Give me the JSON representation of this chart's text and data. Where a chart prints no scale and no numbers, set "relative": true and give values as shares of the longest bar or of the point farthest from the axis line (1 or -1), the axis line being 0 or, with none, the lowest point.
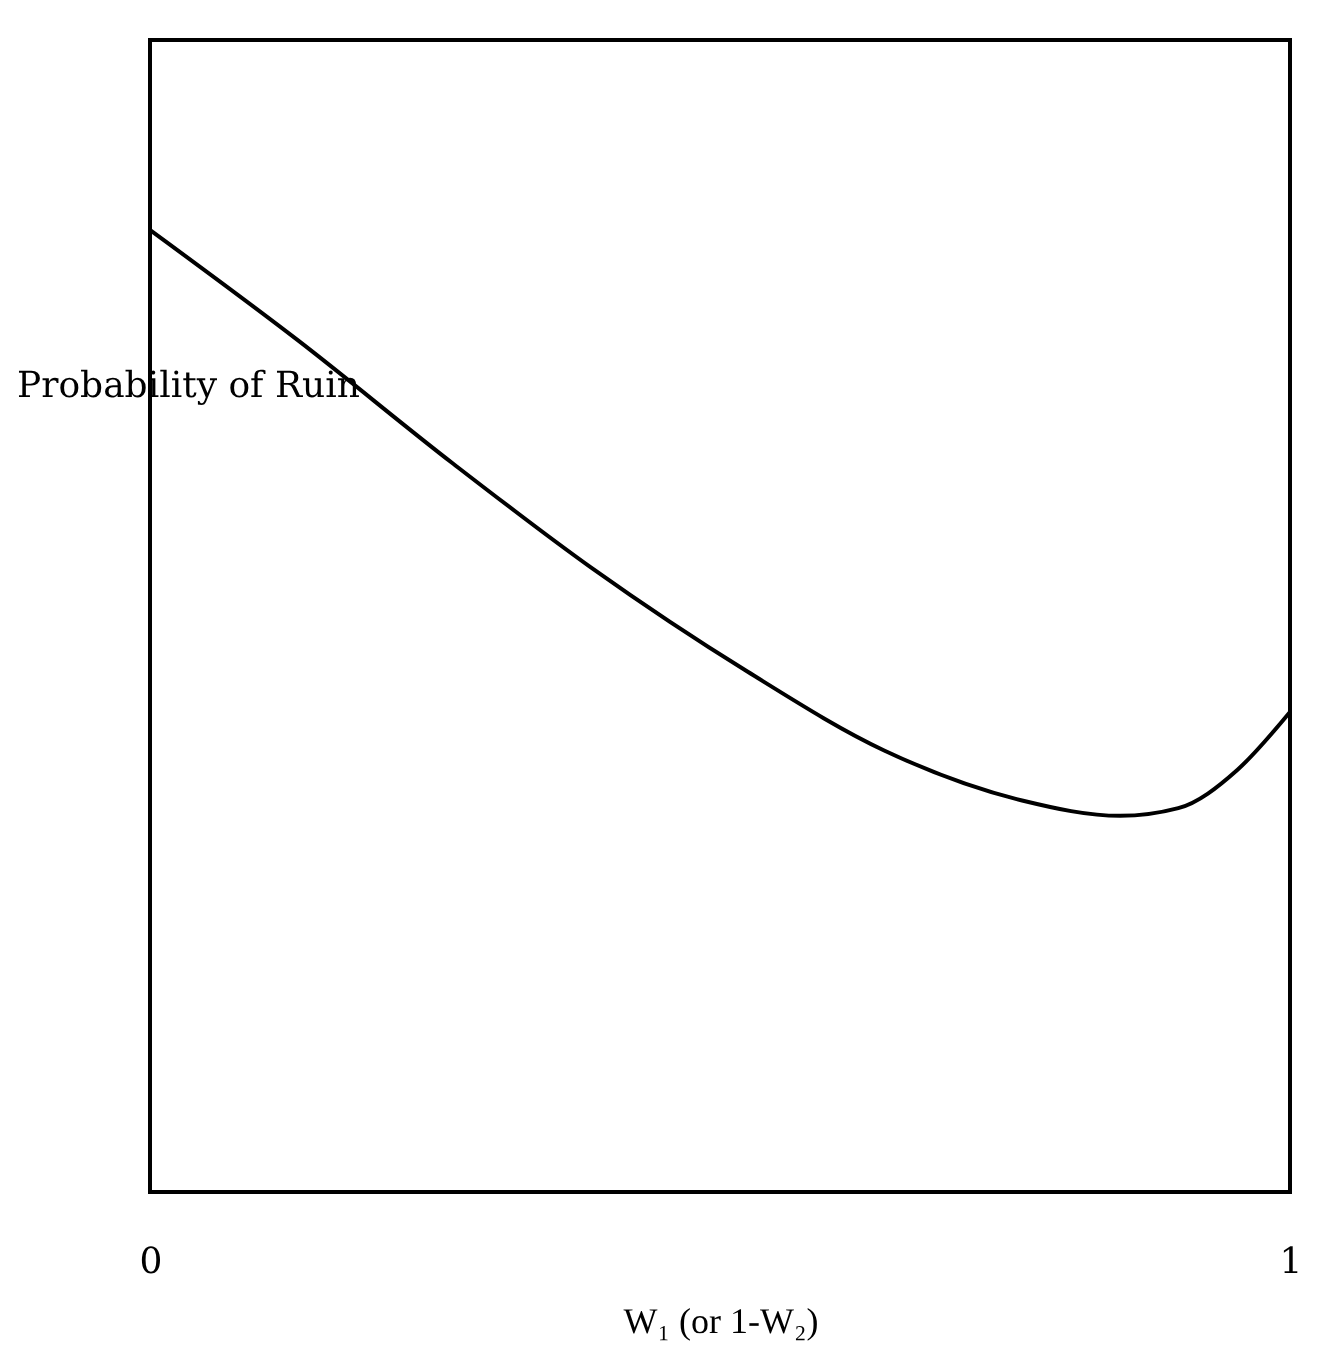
{
  "chart_data": {
    "type": "line",
    "relative": true,
    "xlabel": "W₁ (or 1-W₂)",
    "ylabel": "Probability of Ruin",
    "x": [
      0,
      0.129,
      0.266,
      0.387,
      0.524,
      0.644,
      0.765,
      0.851,
      0.902,
      0.954,
      1
    ],
    "series": [
      {
        "color": "#000000",
        "values": [
          1,
          0.886,
          0.757,
          0.649,
          0.541,
          0.459,
          0.407,
          0.391,
          0.399,
          0.439,
          0.499
        ]
      }
    ],
    "xlim": [
      0,
      1
    ],
    "xticks": [
      0,
      1
    ]
  }
}
